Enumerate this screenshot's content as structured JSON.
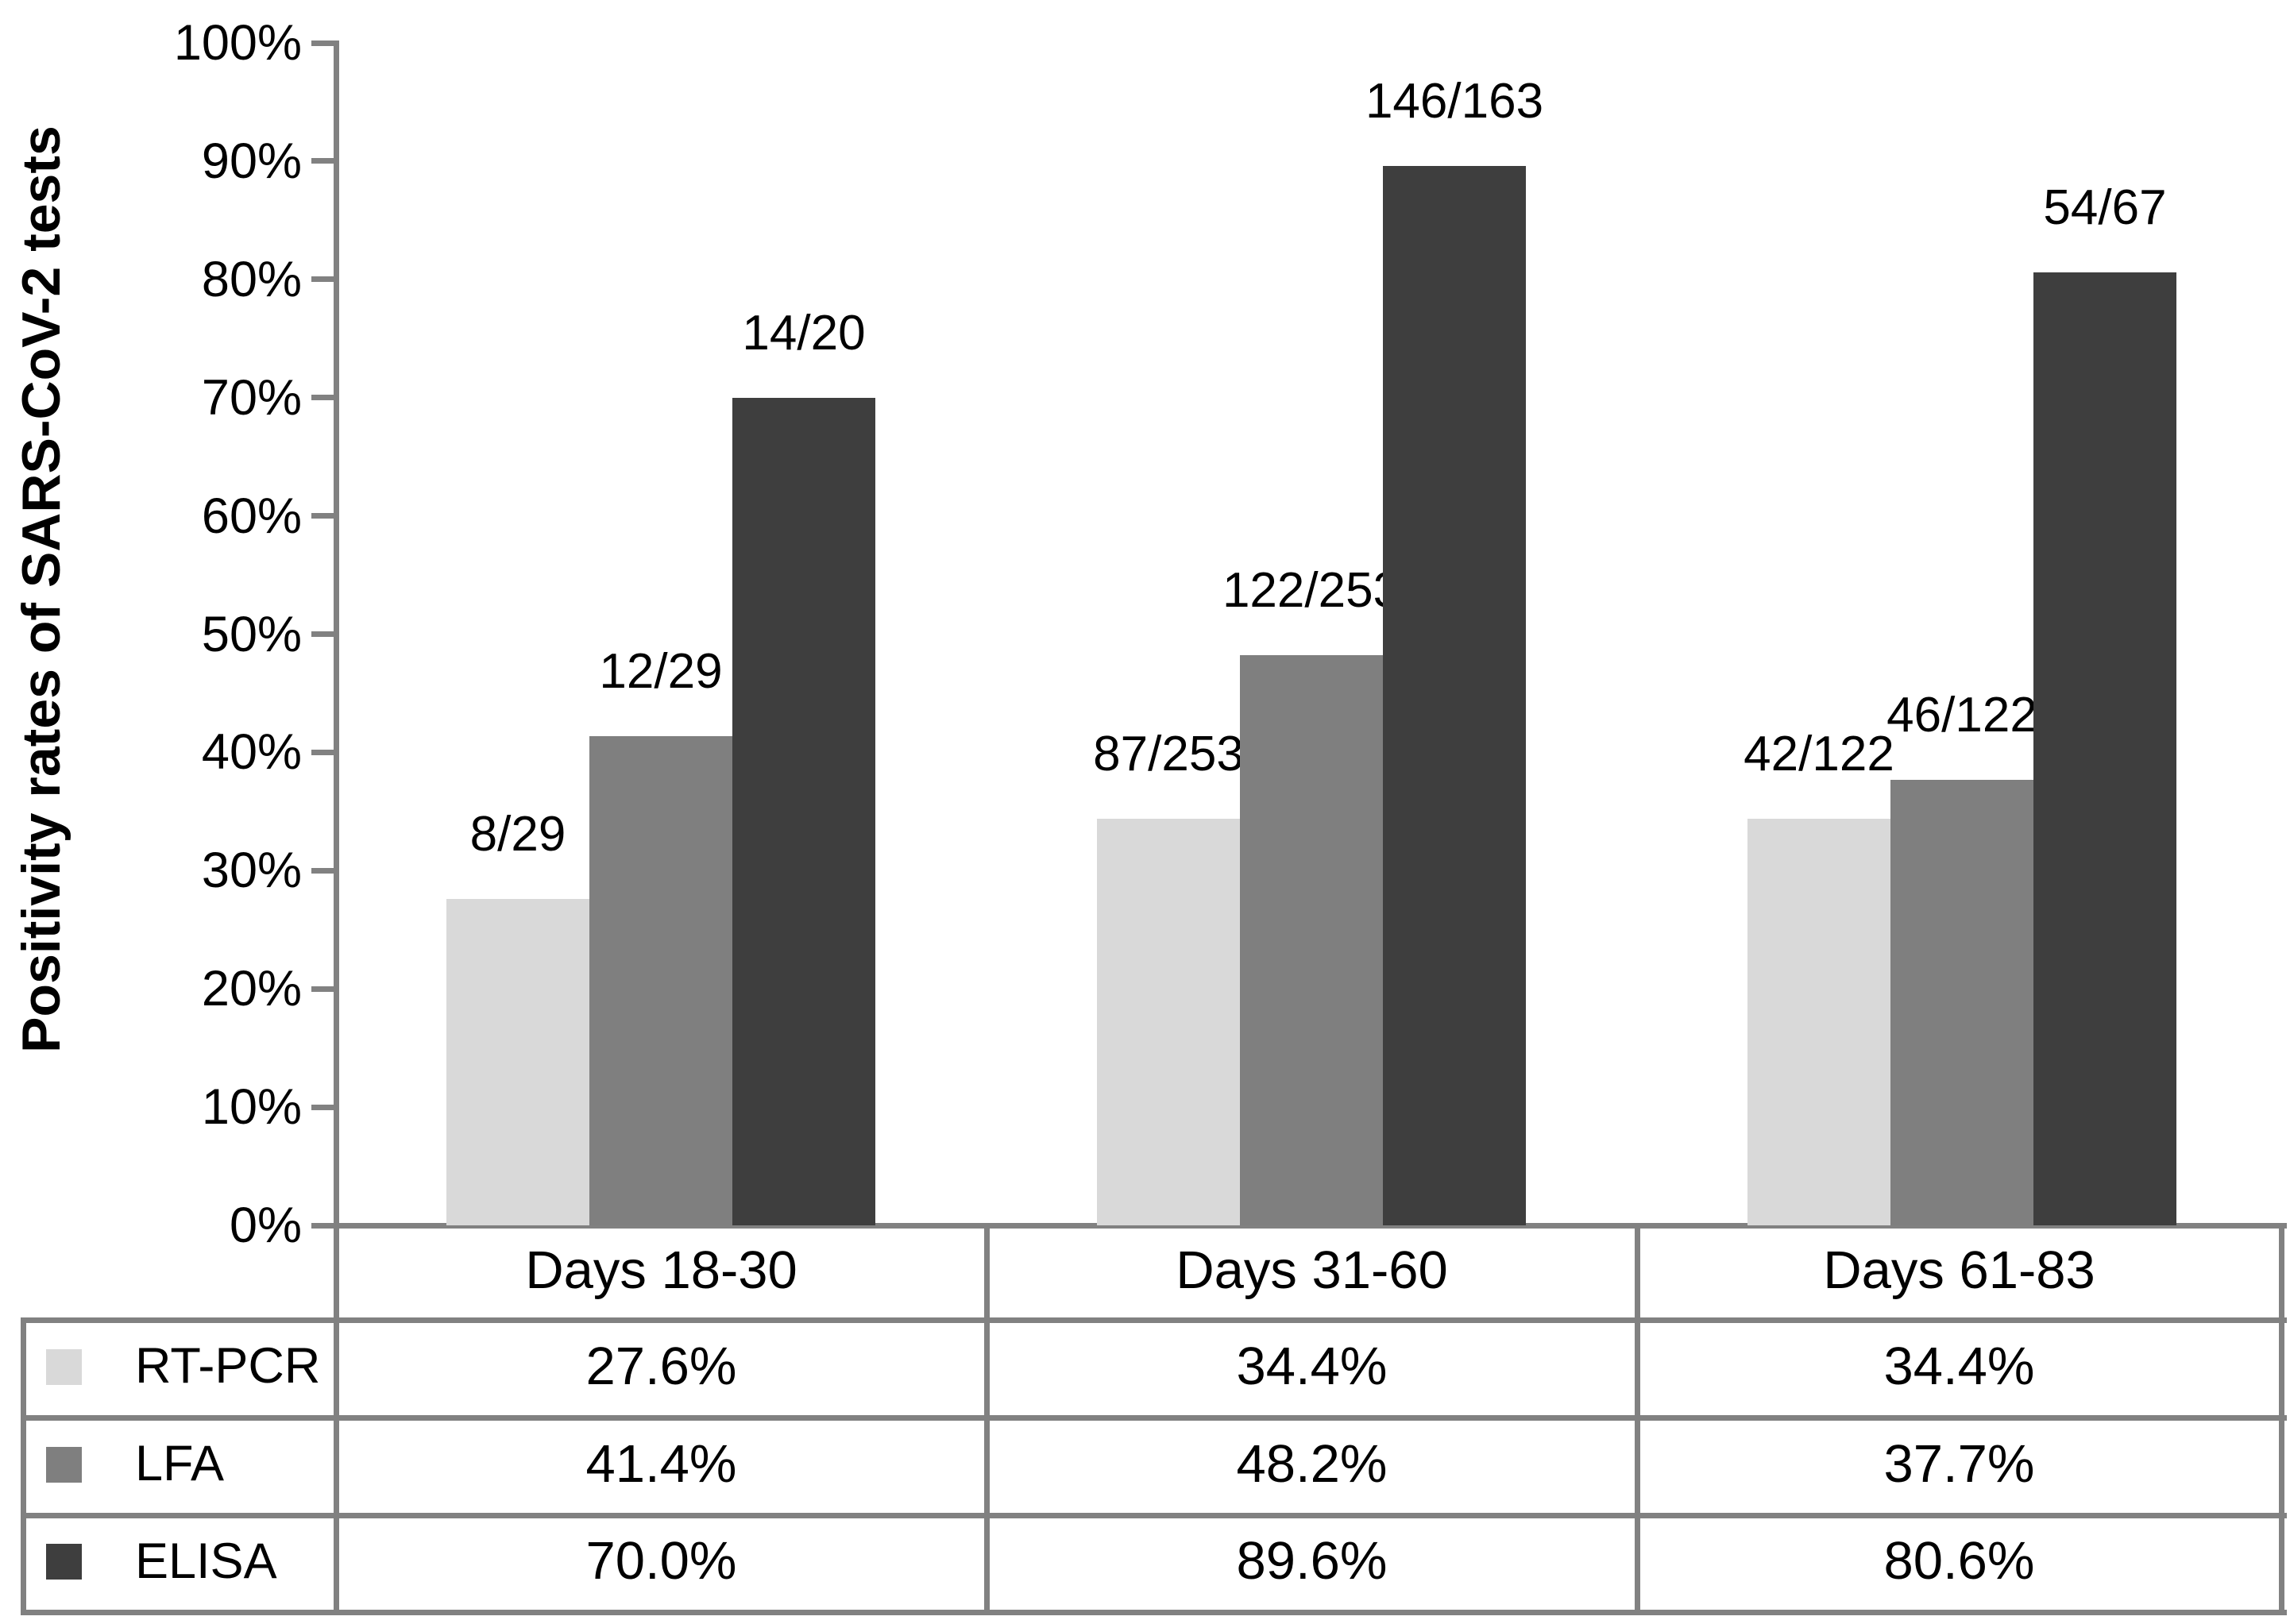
{
  "chart_data": {
    "type": "bar",
    "title": "",
    "ylabel": "Positivity rates of SARS-CoV-2 tests",
    "xlabel": "",
    "categories": [
      "Days 18-30",
      "Days 31-60",
      "Days 61-83"
    ],
    "series": [
      {
        "name": "RT-PCR",
        "color": "#d9d9d9",
        "values": [
          27.6,
          34.4,
          34.4
        ],
        "bar_labels": [
          "8/29",
          "87/253",
          "42/122"
        ],
        "table_values": [
          "27.6%",
          "34.4%",
          "34.4%"
        ]
      },
      {
        "name": "LFA",
        "color": "#7f7f7f",
        "values": [
          41.4,
          48.2,
          37.7
        ],
        "bar_labels": [
          "12/29",
          "122/253",
          "46/122"
        ],
        "table_values": [
          "41.4%",
          "48.2%",
          "37.7%"
        ]
      },
      {
        "name": "ELISA",
        "color": "#3e3e3e",
        "values": [
          70.0,
          89.6,
          80.6
        ],
        "bar_labels": [
          "14/20",
          "146/163",
          "54/67"
        ],
        "table_values": [
          "70.0%",
          "89.6%",
          "80.6%"
        ]
      }
    ],
    "y_tick_labels": [
      "0%",
      "10%",
      "20%",
      "30%",
      "40%",
      "50%",
      "60%",
      "70%",
      "80%",
      "90%",
      "100%"
    ],
    "ylim": [
      0,
      100
    ],
    "grid": false,
    "legend_position": "table-left-column",
    "axis_color": "#818181"
  }
}
